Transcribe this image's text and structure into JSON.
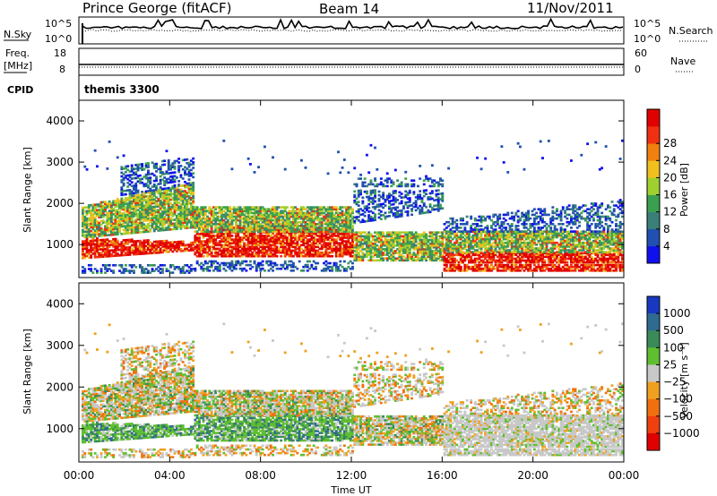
{
  "header": {
    "station": "Prince George (fitACF)",
    "beam": "Beam 14",
    "date": "11/Nov/2011"
  },
  "strips": {
    "nsky_label": "N.Sky",
    "nsky_ticks": [
      "10^5",
      "10^0"
    ],
    "nsearch_label": "N.Search",
    "nsearch_ticks": [
      "10^5",
      "10^0"
    ],
    "freq_label": "Freq.",
    "freq_unit": "[MHz]",
    "freq_ticks": [
      "18",
      "8"
    ],
    "nave_label": "Nave",
    "nave_ticks": [
      "60",
      "0"
    ],
    "cpid_label": "CPID",
    "cpid_value": "themis 3300"
  },
  "chart_data": [
    {
      "type": "heatmap",
      "name": "power",
      "ylabel": "Slant Range [km]",
      "ylim": [
        200,
        4500
      ],
      "yticks": [
        "1000",
        "2000",
        "3000",
        "4000"
      ],
      "xlim": [
        "00:00",
        "24:00"
      ],
      "xticks": [
        "00:00",
        "04:00",
        "08:00",
        "12:00",
        "16:00",
        "20:00",
        "00:00"
      ],
      "colorbar": {
        "label": "Power [dB]",
        "ticks": [
          "4",
          "8",
          "12",
          "16",
          "20",
          "24",
          "28"
        ],
        "colors": [
          "#1010ee",
          "#2050b0",
          "#3a7f78",
          "#3aa050",
          "#9fd030",
          "#f0c020",
          "#f08010",
          "#f03010",
          "#e00000"
        ]
      }
    },
    {
      "type": "heatmap",
      "name": "velocity",
      "ylabel": "Slant Range [km]",
      "ylim": [
        200,
        4500
      ],
      "yticks": [
        "1000",
        "2000",
        "3000",
        "4000"
      ],
      "xlabel": "Time UT",
      "xlim": [
        "00:00",
        "24:00"
      ],
      "xticks": [
        "00:00",
        "04:00",
        "08:00",
        "12:00",
        "16:00",
        "20:00",
        "00:00"
      ],
      "colorbar": {
        "label": "Velocity [m s⁻¹]",
        "ticks": [
          "1000",
          "500",
          "100",
          "25",
          "−25",
          "−100",
          "−500",
          "−1000"
        ],
        "colors": [
          "#1838c0",
          "#2f6a90",
          "#3a8a5a",
          "#5fbf30",
          "#c8c8c8",
          "#f0a020",
          "#f07010",
          "#f04010",
          "#e00000"
        ]
      }
    }
  ]
}
